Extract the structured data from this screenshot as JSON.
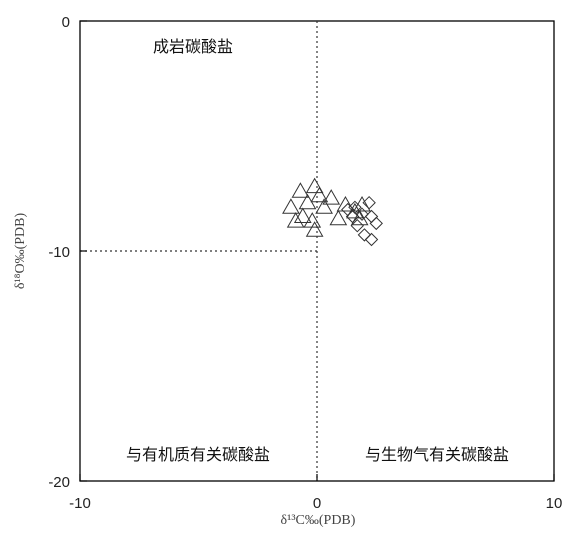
{
  "chart_data": {
    "type": "scatter",
    "xlabel": "δ¹³C‰(PDB)",
    "ylabel": "δ¹⁸O‰(PDB)",
    "xlim": [
      -10,
      10
    ],
    "ylim": [
      -20,
      0
    ],
    "x_ticks": [
      -10,
      0,
      10
    ],
    "y_ticks": [
      0,
      -10,
      -20
    ],
    "x_tick_labels": [
      "-10",
      "0",
      "10"
    ],
    "y_tick_labels": [
      "0",
      "-10",
      "-20"
    ],
    "grid": false,
    "divider_lines": {
      "x": 0,
      "y": -10
    },
    "region_labels": {
      "top": "成岩碳酸盐",
      "bottom_left": "与有机质有关碳酸盐",
      "bottom_right": "与生物气有关碳酸盐"
    },
    "series": [
      {
        "marker": "triangle",
        "points": [
          [
            -0.7,
            -7.4
          ],
          [
            -0.1,
            -7.2
          ],
          [
            0.1,
            -7.6
          ],
          [
            0.6,
            -7.7
          ],
          [
            -0.4,
            -7.9
          ],
          [
            -1.1,
            -8.1
          ],
          [
            0.3,
            -8.1
          ],
          [
            -0.6,
            -8.5
          ],
          [
            -0.2,
            -8.7
          ],
          [
            1.2,
            -8.0
          ],
          [
            1.6,
            -8.3
          ],
          [
            1.9,
            -8.0
          ],
          [
            0.9,
            -8.6
          ],
          [
            -0.1,
            -9.1
          ],
          [
            -0.9,
            -8.7
          ],
          [
            1.8,
            -8.6
          ]
        ]
      },
      {
        "marker": "diamond",
        "points": [
          [
            1.3,
            -8.2
          ],
          [
            1.6,
            -8.1
          ],
          [
            1.9,
            -8.4
          ],
          [
            2.2,
            -7.9
          ],
          [
            2.3,
            -8.5
          ],
          [
            2.5,
            -8.8
          ],
          [
            1.7,
            -8.9
          ],
          [
            2.0,
            -9.3
          ],
          [
            2.3,
            -9.5
          ],
          [
            1.5,
            -8.5
          ]
        ]
      }
    ]
  }
}
